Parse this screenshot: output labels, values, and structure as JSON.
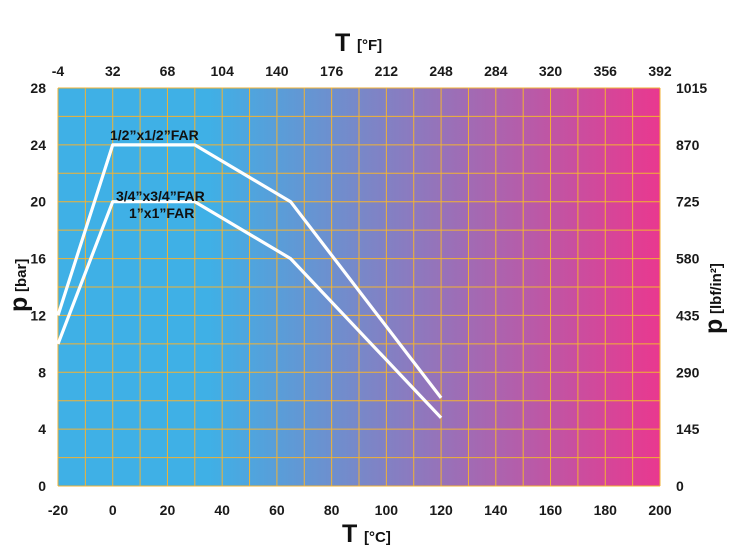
{
  "chart_data": {
    "type": "line",
    "x_bottom": {
      "label_symbol": "T",
      "label_unit": "[°C]",
      "range": [
        -20,
        200
      ],
      "ticks": [
        "-20",
        "0",
        "20",
        "40",
        "60",
        "80",
        "100",
        "120",
        "140",
        "160",
        "180",
        "200"
      ]
    },
    "x_top": {
      "label_symbol": "T",
      "label_unit": "[°F]",
      "ticks": [
        "-4",
        "32",
        "68",
        "104",
        "140",
        "176",
        "212",
        "248",
        "284",
        "320",
        "356",
        "392"
      ]
    },
    "y_left": {
      "label_symbol": "p",
      "label_unit": "[bar]",
      "range": [
        0,
        28
      ],
      "ticks": [
        "0",
        "4",
        "8",
        "12",
        "16",
        "20",
        "24",
        "28"
      ]
    },
    "y_right": {
      "label_symbol": "p",
      "label_unit": "[lbf/in²]",
      "ticks": [
        "0",
        "145",
        "290",
        "435",
        "580",
        "725",
        "870",
        "1015"
      ]
    },
    "grid": true,
    "grid_color": "#f2b233",
    "background_gradient": [
      "#3fb0e6",
      "#e9388f"
    ],
    "line_color": "#ffffff",
    "series": [
      {
        "name": "1/2”x1/2”FAR",
        "points": [
          [
            -20,
            12
          ],
          [
            0,
            24
          ],
          [
            30,
            24
          ],
          [
            65,
            20
          ],
          [
            120,
            6.2
          ]
        ]
      },
      {
        "name": "3/4”x3/4”FAR",
        "name2": "1”x1”FAR",
        "points": [
          [
            -20,
            10
          ],
          [
            0,
            20
          ],
          [
            30,
            20
          ],
          [
            65,
            16
          ],
          [
            120,
            4.8
          ]
        ]
      }
    ]
  }
}
